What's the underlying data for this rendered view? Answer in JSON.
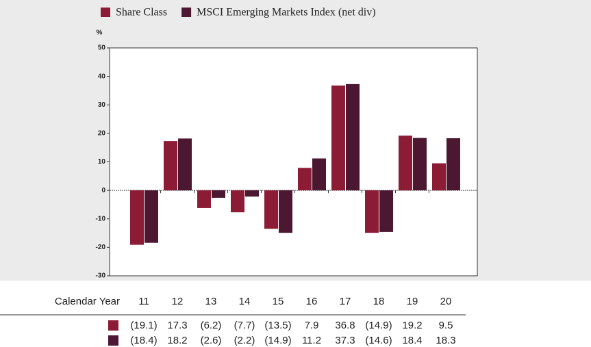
{
  "chart_data": {
    "type": "bar",
    "y_label": "%",
    "x_label": "Calendar Year",
    "categories": [
      "11",
      "12",
      "13",
      "14",
      "15",
      "16",
      "17",
      "18",
      "19",
      "20"
    ],
    "series": [
      {
        "name": "Share Class",
        "color": "#8c1b35",
        "values": [
          -19.1,
          17.3,
          -6.2,
          -7.7,
          -13.5,
          7.9,
          36.8,
          -14.9,
          19.2,
          9.5
        ],
        "value_labels": [
          "(19.1)",
          "17.3",
          "(6.2)",
          "(7.7)",
          "(13.5)",
          "7.9",
          "36.8",
          "(14.9)",
          "19.2",
          "9.5"
        ]
      },
      {
        "name": "MSCI Emerging Markets Index (net div)",
        "color": "#4b1731",
        "values": [
          -18.4,
          18.2,
          -2.6,
          -2.2,
          -14.9,
          11.2,
          37.3,
          -14.6,
          18.4,
          18.3
        ],
        "value_labels": [
          "(18.4)",
          "18.2",
          "(2.6)",
          "(2.2)",
          "(14.9)",
          "11.2",
          "37.3",
          "(14.6)",
          "18.4",
          "18.3"
        ]
      }
    ],
    "ylim": [
      -30,
      50
    ],
    "yticks": [
      -30,
      -20,
      -10,
      0,
      10,
      20,
      30,
      40,
      50
    ],
    "grid": false
  }
}
